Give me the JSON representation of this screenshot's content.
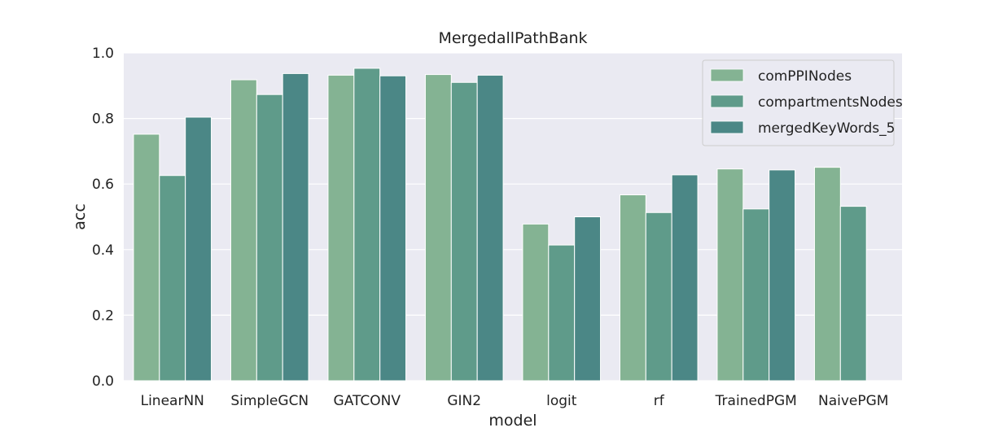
{
  "chart_data": {
    "type": "bar",
    "title": "MergedallPathBank",
    "xlabel": "model",
    "ylabel": "acc",
    "ylim": [
      0.0,
      1.0
    ],
    "yticks": [
      "0.0",
      "0.2",
      "0.4",
      "0.6",
      "0.8",
      "1.0"
    ],
    "grid": true,
    "legend_position": "top-right",
    "categories": [
      "LinearNN",
      "SimpleGCN",
      "GATCONV",
      "GIN2",
      "logit",
      "rf",
      "TrainedPGM",
      "NaivePGM"
    ],
    "series": [
      {
        "name": "comPPINodes",
        "color": "#84b393",
        "values": [
          0.752,
          0.918,
          0.932,
          0.934,
          0.478,
          0.567,
          0.646,
          0.651
        ]
      },
      {
        "name": "compartmentsNodes",
        "color": "#5f9b8a",
        "values": [
          0.626,
          0.873,
          0.953,
          0.91,
          0.414,
          0.513,
          0.524,
          0.532
        ]
      },
      {
        "name": "mergedKeyWords_5",
        "color": "#4b8786",
        "values": [
          0.804,
          0.937,
          0.93,
          0.932,
          0.5,
          0.628,
          0.643,
          null
        ]
      }
    ],
    "colors": {
      "plot_background": "#eaeaf2",
      "grid": "#ffffff"
    }
  }
}
